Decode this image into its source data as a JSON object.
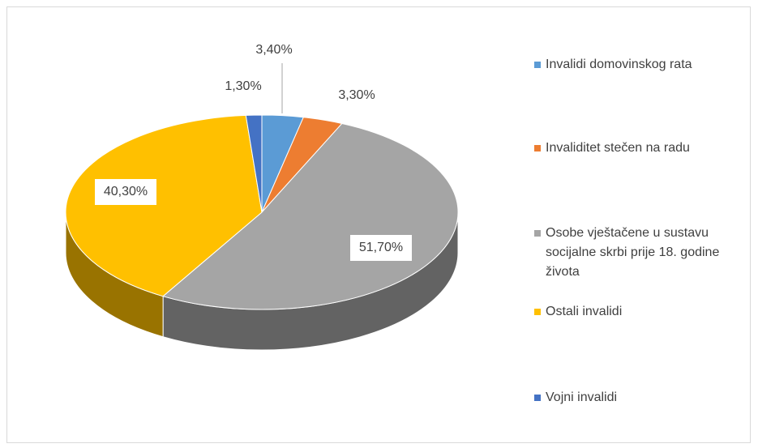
{
  "chart_data": {
    "type": "pie3d",
    "categories": [
      "Invalidi domovinskog rata",
      "Invaliditet stečen na radu",
      "Osobe vještačene u sustavu socijalne skrbi prije 18. godine života",
      "Ostali invalidi",
      "Vojni invalidi"
    ],
    "values": [
      3.4,
      3.3,
      51.7,
      40.3,
      1.3
    ],
    "value_labels": [
      "3,40%",
      "3,30%",
      "51,70%",
      "40,30%",
      "1,30%"
    ],
    "colors": [
      "#5b9bd5",
      "#ed7d31",
      "#a5a5a5",
      "#ffc000",
      "#4472c4"
    ],
    "legend": "right"
  }
}
